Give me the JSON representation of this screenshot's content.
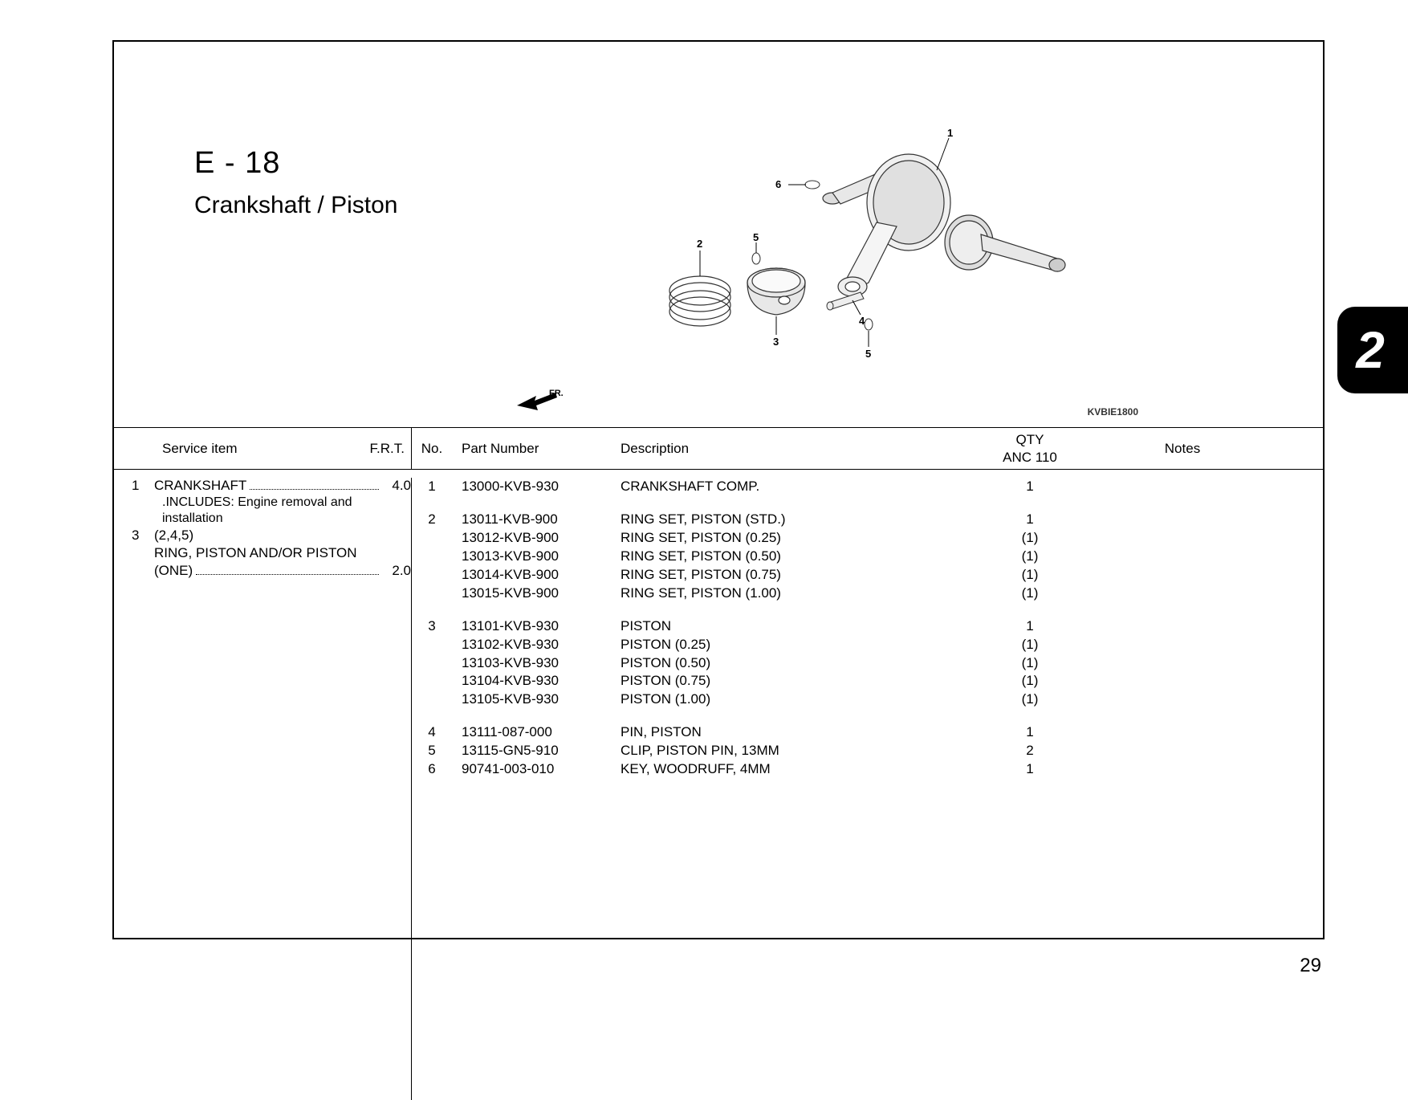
{
  "section_code": "E - 18",
  "section_title": "Crankshaft / Piston",
  "diagram_code": "KVBIE1800",
  "fr_label": "FR.",
  "section_tab": "2",
  "page_number": "29",
  "callouts": [
    "1",
    "2",
    "3",
    "4",
    "5",
    "6"
  ],
  "headers": {
    "service": "Service item",
    "frt": "F.R.T.",
    "no": "No.",
    "part": "Part Number",
    "desc": "Description",
    "qty_line1": "QTY",
    "qty_line2": "ANC 110",
    "notes": "Notes"
  },
  "service_items": [
    {
      "idx": "1",
      "name": "CRANKSHAFT",
      "frt": "4.0",
      "sub": [
        ".INCLUDES: Engine removal and",
        "installation"
      ]
    },
    {
      "idx": "3",
      "name": "(2,4,5)",
      "frt": "",
      "sub": []
    },
    {
      "idx": "",
      "name": "RING, PISTON AND/OR PISTON",
      "frt": "",
      "sub": []
    },
    {
      "idx": "",
      "name": "(ONE)",
      "frt": "2.0",
      "sub": [],
      "leader": true
    }
  ],
  "parts": [
    {
      "group": [
        {
          "no": "1",
          "part": "13000-KVB-930",
          "desc": "CRANKSHAFT COMP.",
          "qty": "1"
        }
      ]
    },
    {
      "group": [
        {
          "no": "2",
          "part": "13011-KVB-900",
          "desc": "RING SET, PISTON (STD.)",
          "qty": "1"
        },
        {
          "no": "",
          "part": "13012-KVB-900",
          "desc": "RING SET, PISTON (0.25)",
          "qty": "(1)"
        },
        {
          "no": "",
          "part": "13013-KVB-900",
          "desc": "RING SET, PISTON (0.50)",
          "qty": "(1)"
        },
        {
          "no": "",
          "part": "13014-KVB-900",
          "desc": "RING SET, PISTON (0.75)",
          "qty": "(1)"
        },
        {
          "no": "",
          "part": "13015-KVB-900",
          "desc": "RING SET, PISTON (1.00)",
          "qty": "(1)"
        }
      ]
    },
    {
      "group": [
        {
          "no": "3",
          "part": "13101-KVB-930",
          "desc": "PISTON",
          "qty": "1"
        },
        {
          "no": "",
          "part": "13102-KVB-930",
          "desc": "PISTON (0.25)",
          "qty": "(1)"
        },
        {
          "no": "",
          "part": "13103-KVB-930",
          "desc": "PISTON (0.50)",
          "qty": "(1)"
        },
        {
          "no": "",
          "part": "13104-KVB-930",
          "desc": "PISTON (0.75)",
          "qty": "(1)"
        },
        {
          "no": "",
          "part": "13105-KVB-930",
          "desc": "PISTON (1.00)",
          "qty": "(1)"
        }
      ]
    },
    {
      "group": [
        {
          "no": "4",
          "part": "13111-087-000",
          "desc": "PIN, PISTON",
          "qty": "1"
        },
        {
          "no": "5",
          "part": "13115-GN5-910",
          "desc": "CLIP, PISTON PIN, 13MM",
          "qty": "2"
        },
        {
          "no": "6",
          "part": "90741-003-010",
          "desc": "KEY, WOODRUFF, 4MM",
          "qty": "1"
        }
      ]
    }
  ]
}
